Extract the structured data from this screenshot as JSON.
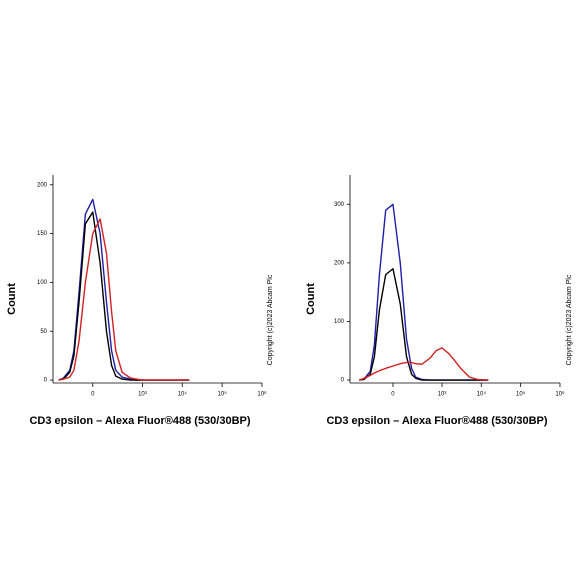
{
  "chart_data": [
    {
      "type": "line",
      "x_label": "CD3 epsilon – Alexa Fluor®488 (530/30BP)",
      "y_label": "Count",
      "annotation": "Copyright (c)2023 Abcam Plc",
      "xscale": "biexponential",
      "x": [
        -400,
        -300,
        -200,
        -150,
        -100,
        -50,
        0,
        50,
        100,
        150,
        200,
        300,
        500,
        700,
        1000,
        1500,
        2000,
        3000,
        5000,
        8000,
        15000
      ],
      "xlim": [
        -560,
        1000000
      ],
      "xticks": [
        0,
        {
          "value": 1000,
          "label": "10³"
        },
        {
          "value": 10000,
          "label": "10⁴"
        },
        {
          "value": 100000,
          "label": "10⁵"
        },
        {
          "value": 1000000,
          "label": "10⁶"
        }
      ],
      "ylim": [
        -3,
        210
      ],
      "yticks": [
        0,
        50,
        100,
        150,
        200
      ],
      "series": [
        {
          "color": "#1f1fa8",
          "values": [
            0,
            2,
            10,
            30,
            90,
            170,
            185,
            150,
            80,
            30,
            10,
            3,
            1,
            0,
            0,
            0,
            0,
            0,
            0,
            0,
            0
          ]
        },
        {
          "color": "#000000",
          "values": [
            0,
            1,
            8,
            25,
            80,
            160,
            172,
            120,
            50,
            15,
            4,
            1,
            0,
            0,
            0,
            0,
            0,
            0,
            0,
            0,
            0
          ]
        },
        {
          "color": "#d42020",
          "values": [
            0,
            1,
            3,
            10,
            40,
            100,
            150,
            165,
            130,
            70,
            30,
            8,
            2,
            1,
            0,
            0,
            0,
            0,
            0,
            0,
            0
          ]
        }
      ]
    },
    {
      "type": "line",
      "x_label": "CD3 epsilon – Alexa Fluor®488 (530/30BP)",
      "y_label": "Count",
      "annotation": "Copyright (c)2023 Abcam Plc",
      "xscale": "biexponential",
      "x": [
        -400,
        -300,
        -200,
        -150,
        -100,
        -50,
        0,
        50,
        100,
        150,
        200,
        300,
        500,
        700,
        1000,
        1500,
        2000,
        3000,
        5000,
        8000,
        15000
      ],
      "xlim": [
        -700,
        1000000
      ],
      "xticks": [
        0,
        {
          "value": 1000,
          "label": "10³"
        },
        {
          "value": 10000,
          "label": "10⁴"
        },
        {
          "value": 100000,
          "label": "10⁵"
        },
        {
          "value": 1000000,
          "label": "10⁶"
        }
      ],
      "ylim": [
        -5,
        350
      ],
      "yticks": [
        0,
        100,
        200,
        300
      ],
      "series": [
        {
          "color": "#1f1fa8",
          "values": [
            0,
            2,
            15,
            60,
            180,
            290,
            300,
            200,
            70,
            20,
            5,
            1,
            0,
            0,
            0,
            0,
            0,
            0,
            0,
            0,
            0
          ]
        },
        {
          "color": "#000000",
          "values": [
            0,
            1,
            10,
            40,
            120,
            180,
            190,
            130,
            40,
            10,
            3,
            0,
            0,
            0,
            0,
            0,
            0,
            0,
            0,
            0,
            0
          ]
        },
        {
          "color": "#d42020",
          "values": [
            0,
            3,
            8,
            12,
            16,
            20,
            24,
            28,
            30,
            30,
            28,
            27,
            38,
            50,
            55,
            45,
            35,
            20,
            5,
            1,
            0
          ]
        }
      ]
    }
  ]
}
